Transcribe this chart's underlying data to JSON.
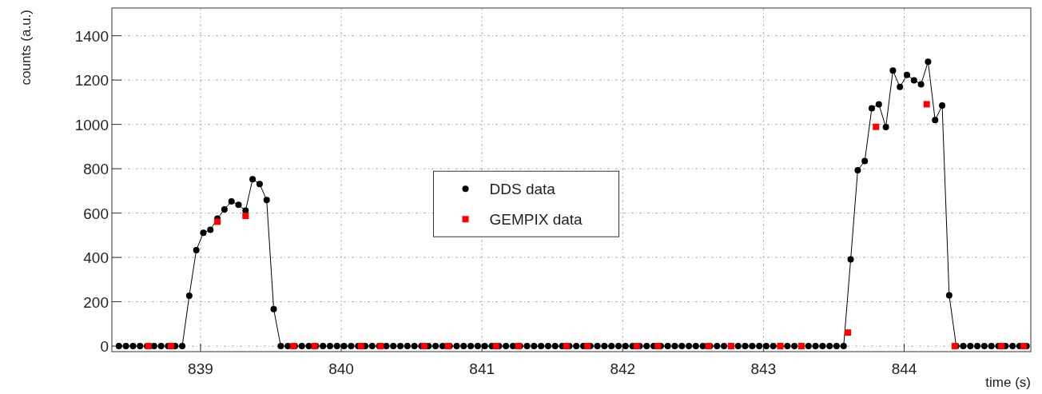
{
  "chart_data": {
    "type": "line",
    "xlabel": "time (s)",
    "ylabel": "counts (a.u.)",
    "xlim": [
      838.37,
      844.9
    ],
    "xticks": [
      839,
      840,
      841,
      842,
      843,
      844
    ],
    "ylim": [
      -25,
      1525
    ],
    "yticks": [
      0,
      200,
      400,
      600,
      800,
      1000,
      1200,
      1400
    ],
    "grid": true,
    "legend": "center",
    "marker": "circle",
    "line_style": "solid",
    "series": [
      {
        "name": "DDS data",
        "color": "#000000",
        "x": [
          838.42,
          838.47,
          838.52,
          838.57,
          838.62,
          838.67,
          838.72,
          838.77,
          838.82,
          838.87,
          838.92,
          838.97,
          839.02,
          839.07,
          839.12,
          839.17,
          839.22,
          839.27,
          839.32,
          839.37,
          839.42,
          839.47,
          839.52,
          839.57,
          839.62,
          839.67,
          839.72,
          839.77,
          839.82,
          839.87,
          839.92,
          839.97,
          840.02,
          840.07,
          840.12,
          840.17,
          840.22,
          840.27,
          840.32,
          840.37,
          840.42,
          840.47,
          840.52,
          840.57,
          840.62,
          840.67,
          840.72,
          840.77,
          840.82,
          840.87,
          840.92,
          840.97,
          841.02,
          841.07,
          841.12,
          841.17,
          841.22,
          841.27,
          841.32,
          841.37,
          841.42,
          841.47,
          841.52,
          841.57,
          841.62,
          841.67,
          841.72,
          841.77,
          841.82,
          841.87,
          841.92,
          841.97,
          842.02,
          842.07,
          842.12,
          842.17,
          842.22,
          842.27,
          842.32,
          842.37,
          842.42,
          842.47,
          842.52,
          842.57,
          842.62,
          842.67,
          842.72,
          842.77,
          842.82,
          842.87,
          842.92,
          842.97,
          843.02,
          843.07,
          843.12,
          843.17,
          843.22,
          843.27,
          843.32,
          843.37,
          843.42,
          843.47,
          843.52,
          843.57,
          843.62,
          843.67,
          843.72,
          843.77,
          843.82,
          843.87,
          843.92,
          843.97,
          844.02,
          844.07,
          844.12,
          844.17,
          844.22,
          844.27,
          844.32,
          844.37,
          844.42,
          844.47,
          844.52,
          844.57,
          844.62,
          844.67,
          844.72,
          844.77,
          844.82,
          844.87
        ],
        "values": [
          0,
          0,
          0,
          0,
          0,
          0,
          0,
          0,
          0,
          0,
          227,
          433,
          511,
          525,
          575,
          617,
          653,
          637,
          611,
          753,
          731,
          659,
          167,
          0,
          0,
          0,
          0,
          0,
          0,
          0,
          0,
          0,
          0,
          0,
          0,
          0,
          0,
          0,
          0,
          0,
          0,
          0,
          0,
          0,
          0,
          0,
          0,
          0,
          0,
          0,
          0,
          0,
          0,
          0,
          0,
          0,
          0,
          0,
          0,
          0,
          0,
          0,
          0,
          0,
          0,
          0,
          0,
          0,
          0,
          0,
          0,
          0,
          0,
          0,
          0,
          0,
          0,
          0,
          0,
          0,
          0,
          0,
          0,
          0,
          0,
          0,
          0,
          0,
          0,
          0,
          0,
          0,
          0,
          0,
          0,
          0,
          0,
          0,
          0,
          0,
          0,
          0,
          0,
          0,
          391,
          793,
          835,
          1073,
          1091,
          988,
          1243,
          1169,
          1223,
          1199,
          1181,
          1283,
          1019,
          1085,
          229,
          0,
          0,
          0,
          0,
          0,
          0,
          0,
          0,
          0,
          0,
          0
        ]
      },
      {
        "name": "GEMPIX data",
        "type": "scatter",
        "marker": "square",
        "color": "#ff0000",
        "x": [
          838.63,
          838.79,
          839.12,
          839.32,
          839.66,
          839.81,
          840.14,
          840.28,
          840.59,
          840.76,
          841.1,
          841.26,
          841.6,
          841.75,
          842.1,
          842.25,
          842.61,
          842.77,
          843.12,
          843.27,
          843.6,
          843.8,
          844.16,
          844.36,
          844.69,
          844.85
        ],
        "values": [
          0,
          0,
          561,
          587,
          0,
          0,
          0,
          0,
          0,
          0,
          0,
          0,
          0,
          0,
          0,
          0,
          0,
          0,
          0,
          0,
          61,
          989,
          1091,
          0,
          0,
          0
        ]
      }
    ]
  }
}
